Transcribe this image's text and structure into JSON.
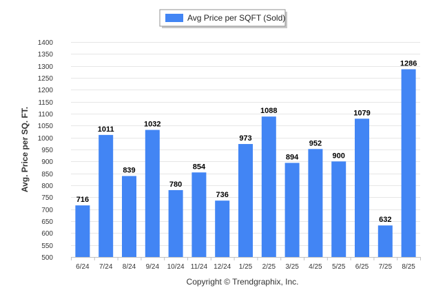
{
  "chart_data": {
    "type": "bar",
    "categories": [
      "6/24",
      "7/24",
      "8/24",
      "9/24",
      "10/24",
      "11/24",
      "12/24",
      "1/25",
      "2/25",
      "3/25",
      "4/25",
      "5/25",
      "6/25",
      "7/25",
      "8/25"
    ],
    "series": [
      {
        "name": "Avg Price per SQFT (Sold)",
        "values": [
          716,
          1011,
          839,
          1032,
          780,
          854,
          736,
          973,
          1088,
          894,
          952,
          900,
          1079,
          632,
          1286
        ]
      }
    ],
    "ylabel": "Avg. Price per SQ. FT.",
    "xlabel": "",
    "ylim": [
      500,
      1400
    ],
    "ytick_step": 50,
    "grid": true,
    "legend_position": "top-center",
    "bar_color": "#4285f4"
  },
  "footer": {
    "copyright": "Copyright © Trendgraphix, Inc."
  }
}
